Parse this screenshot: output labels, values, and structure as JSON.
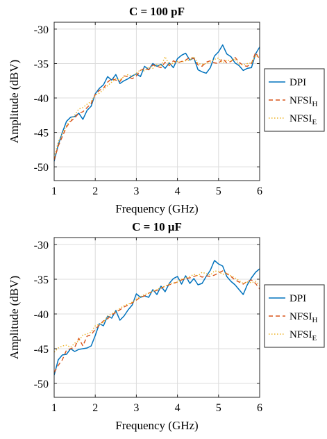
{
  "chart_data": [
    {
      "type": "line",
      "title": "C = 100 pF",
      "xlabel": "Frequency (GHz)",
      "ylabel": "Amplitude (dBV)",
      "xlim": [
        1,
        6
      ],
      "ylim": [
        -52,
        -29
      ],
      "xticks": [
        1,
        2,
        3,
        4,
        5,
        6
      ],
      "yticks": [
        -50,
        -45,
        -40,
        -35,
        -30
      ],
      "grid": true,
      "legend_position": "right",
      "series": [
        {
          "name": "DPI",
          "label_main": "DPI",
          "label_sub": "",
          "color": "#0072BD",
          "dash": "solid",
          "x": [
            1.0,
            1.1,
            1.2,
            1.3,
            1.4,
            1.5,
            1.6,
            1.7,
            1.8,
            1.9,
            2.0,
            2.1,
            2.2,
            2.3,
            2.4,
            2.5,
            2.6,
            2.7,
            2.8,
            2.9,
            3.0,
            3.1,
            3.2,
            3.3,
            3.4,
            3.5,
            3.6,
            3.7,
            3.8,
            3.9,
            4.0,
            4.1,
            4.2,
            4.3,
            4.4,
            4.5,
            4.6,
            4.7,
            4.8,
            4.9,
            5.0,
            5.1,
            5.2,
            5.3,
            5.4,
            5.5,
            5.6,
            5.7,
            5.8,
            5.9,
            6.0
          ],
          "y": [
            -49.2,
            -46.8,
            -45.0,
            -43.4,
            -42.8,
            -42.7,
            -42.2,
            -43.1,
            -41.8,
            -41.2,
            -39.4,
            -38.6,
            -38.1,
            -36.9,
            -37.4,
            -36.6,
            -37.9,
            -37.5,
            -37.2,
            -36.8,
            -36.5,
            -36.9,
            -35.4,
            -35.9,
            -35.0,
            -35.4,
            -35.1,
            -35.7,
            -34.9,
            -35.6,
            -34.3,
            -33.8,
            -33.5,
            -34.5,
            -34.2,
            -35.9,
            -36.2,
            -36.4,
            -35.6,
            -33.9,
            -33.3,
            -32.3,
            -33.6,
            -34.0,
            -34.9,
            -35.3,
            -36.0,
            -35.7,
            -35.6,
            -33.6,
            -32.6
          ]
        },
        {
          "name": "NFSI_H",
          "label_main": "NFSI",
          "label_sub": "H",
          "color": "#D95319",
          "dash": "6,4",
          "x": [
            1.0,
            1.1,
            1.2,
            1.3,
            1.4,
            1.5,
            1.6,
            1.7,
            1.8,
            1.9,
            2.0,
            2.1,
            2.2,
            2.3,
            2.4,
            2.5,
            2.6,
            2.7,
            2.8,
            2.9,
            3.0,
            3.1,
            3.2,
            3.3,
            3.4,
            3.5,
            3.6,
            3.7,
            3.8,
            3.9,
            4.0,
            4.1,
            4.2,
            4.3,
            4.4,
            4.5,
            4.6,
            4.7,
            4.8,
            4.9,
            5.0,
            5.1,
            5.2,
            5.3,
            5.4,
            5.5,
            5.6,
            5.7,
            5.8,
            5.9,
            6.0
          ],
          "y": [
            -49.0,
            -47.0,
            -45.6,
            -44.2,
            -43.4,
            -42.9,
            -42.2,
            -42.0,
            -41.4,
            -40.8,
            -39.5,
            -38.9,
            -38.6,
            -37.7,
            -37.2,
            -37.4,
            -37.6,
            -36.8,
            -36.9,
            -37.2,
            -36.8,
            -36.0,
            -35.7,
            -35.9,
            -35.2,
            -35.4,
            -35.6,
            -34.8,
            -35.3,
            -34.6,
            -34.9,
            -34.7,
            -34.5,
            -34.1,
            -34.3,
            -35.2,
            -35.4,
            -34.8,
            -34.6,
            -34.9,
            -35.0,
            -34.3,
            -34.9,
            -34.7,
            -34.1,
            -34.8,
            -35.3,
            -35.4,
            -35.0,
            -33.4,
            -34.4
          ]
        },
        {
          "name": "NFSI_E",
          "label_main": "NFSI",
          "label_sub": "E",
          "color": "#EDB120",
          "dash": "1.5,2.5",
          "x": [
            1.0,
            1.1,
            1.2,
            1.3,
            1.4,
            1.5,
            1.6,
            1.7,
            1.8,
            1.9,
            2.0,
            2.1,
            2.2,
            2.3,
            2.4,
            2.5,
            2.6,
            2.7,
            2.8,
            2.9,
            3.0,
            3.1,
            3.2,
            3.3,
            3.4,
            3.5,
            3.6,
            3.7,
            3.8,
            3.9,
            4.0,
            4.1,
            4.2,
            4.3,
            4.4,
            4.5,
            4.6,
            4.7,
            4.8,
            4.9,
            5.0,
            5.1,
            5.2,
            5.3,
            5.4,
            5.5,
            5.6,
            5.7,
            5.8,
            5.9,
            6.0
          ],
          "y": [
            -48.6,
            -46.4,
            -45.1,
            -44.0,
            -43.2,
            -42.5,
            -41.6,
            -41.4,
            -40.9,
            -40.5,
            -39.6,
            -39.3,
            -38.8,
            -38.2,
            -37.7,
            -37.2,
            -37.4,
            -36.9,
            -36.6,
            -36.9,
            -36.4,
            -35.9,
            -36.1,
            -35.5,
            -35.7,
            -35.1,
            -35.4,
            -34.0,
            -35.2,
            -34.9,
            -34.7,
            -34.8,
            -34.6,
            -34.5,
            -34.0,
            -35.0,
            -35.1,
            -35.0,
            -34.8,
            -34.4,
            -34.2,
            -34.9,
            -34.5,
            -34.6,
            -34.3,
            -35.1,
            -35.2,
            -35.0,
            -34.9,
            -33.9,
            -34.0
          ]
        }
      ]
    },
    {
      "type": "line",
      "title": "C = 10 μF",
      "xlabel": "Frequency (GHz)",
      "ylabel": "Amplitude (dBV)",
      "xlim": [
        1,
        6
      ],
      "ylim": [
        -52,
        -29
      ],
      "xticks": [
        1,
        2,
        3,
        4,
        5,
        6
      ],
      "yticks": [
        -50,
        -45,
        -40,
        -35,
        -30
      ],
      "grid": true,
      "legend_position": "right",
      "series": [
        {
          "name": "DPI",
          "label_main": "DPI",
          "label_sub": "",
          "color": "#0072BD",
          "dash": "solid",
          "x": [
            1.0,
            1.1,
            1.2,
            1.3,
            1.4,
            1.5,
            1.6,
            1.7,
            1.8,
            1.9,
            2.0,
            2.1,
            2.2,
            2.3,
            2.4,
            2.5,
            2.6,
            2.7,
            2.8,
            2.9,
            3.0,
            3.1,
            3.2,
            3.3,
            3.4,
            3.5,
            3.6,
            3.7,
            3.8,
            3.9,
            4.0,
            4.1,
            4.2,
            4.3,
            4.4,
            4.5,
            4.6,
            4.7,
            4.8,
            4.9,
            5.0,
            5.1,
            5.2,
            5.3,
            5.4,
            5.5,
            5.6,
            5.7,
            5.8,
            5.9,
            6.0
          ],
          "y": [
            -48.8,
            -46.6,
            -45.9,
            -45.8,
            -45.0,
            -45.4,
            -45.1,
            -45.0,
            -44.9,
            -44.6,
            -43.1,
            -41.4,
            -41.7,
            -40.3,
            -40.6,
            -39.5,
            -40.9,
            -40.3,
            -39.4,
            -38.7,
            -37.1,
            -37.6,
            -37.4,
            -37.6,
            -36.5,
            -37.2,
            -36.0,
            -36.8,
            -35.6,
            -34.9,
            -34.6,
            -35.7,
            -34.5,
            -35.6,
            -34.9,
            -35.8,
            -35.6,
            -34.6,
            -33.7,
            -32.3,
            -32.8,
            -33.1,
            -34.6,
            -35.3,
            -35.8,
            -36.5,
            -37.2,
            -35.8,
            -34.8,
            -34.0,
            -33.5
          ]
        },
        {
          "name": "NFSI_H",
          "label_main": "NFSI",
          "label_sub": "H",
          "color": "#D95319",
          "dash": "6,4",
          "x": [
            1.0,
            1.1,
            1.2,
            1.3,
            1.4,
            1.5,
            1.6,
            1.7,
            1.8,
            1.9,
            2.0,
            2.1,
            2.2,
            2.3,
            2.4,
            2.5,
            2.6,
            2.7,
            2.8,
            2.9,
            3.0,
            3.1,
            3.2,
            3.3,
            3.4,
            3.5,
            3.6,
            3.7,
            3.8,
            3.9,
            4.0,
            4.1,
            4.2,
            4.3,
            4.4,
            4.5,
            4.6,
            4.7,
            4.8,
            4.9,
            5.0,
            5.1,
            5.2,
            5.3,
            5.4,
            5.5,
            5.6,
            5.7,
            5.8,
            5.9,
            6.0
          ],
          "y": [
            -48.4,
            -47.4,
            -46.6,
            -45.2,
            -45.0,
            -44.8,
            -43.5,
            -44.6,
            -43.2,
            -43.0,
            -42.2,
            -41.6,
            -41.0,
            -40.7,
            -40.1,
            -39.8,
            -39.4,
            -39.0,
            -38.7,
            -38.4,
            -38.0,
            -37.6,
            -37.4,
            -37.0,
            -36.8,
            -36.6,
            -36.3,
            -36.0,
            -35.8,
            -35.6,
            -35.4,
            -35.1,
            -34.9,
            -34.8,
            -34.6,
            -34.4,
            -34.7,
            -34.5,
            -34.6,
            -34.4,
            -34.1,
            -33.8,
            -34.2,
            -34.6,
            -35.1,
            -35.4,
            -35.7,
            -35.3,
            -35.1,
            -35.6,
            -36.4
          ]
        },
        {
          "name": "NFSI_E",
          "label_main": "NFSI",
          "label_sub": "E",
          "color": "#EDB120",
          "dash": "1.5,2.5",
          "x": [
            1.0,
            1.1,
            1.2,
            1.3,
            1.4,
            1.5,
            1.6,
            1.7,
            1.8,
            1.9,
            2.0,
            2.1,
            2.2,
            2.3,
            2.4,
            2.5,
            2.6,
            2.7,
            2.8,
            2.9,
            3.0,
            3.1,
            3.2,
            3.3,
            3.4,
            3.5,
            3.6,
            3.7,
            3.8,
            3.9,
            4.0,
            4.1,
            4.2,
            4.3,
            4.4,
            4.5,
            4.6,
            4.7,
            4.8,
            4.9,
            5.0,
            5.1,
            5.2,
            5.3,
            5.4,
            5.5,
            5.6,
            5.7,
            5.8,
            5.9,
            6.0
          ],
          "y": [
            -45.5,
            -44.9,
            -44.6,
            -44.5,
            -44.8,
            -44.2,
            -43.9,
            -43.0,
            -42.9,
            -42.6,
            -41.7,
            -41.5,
            -41.2,
            -40.3,
            -40.0,
            -39.6,
            -39.2,
            -38.8,
            -38.6,
            -38.3,
            -37.9,
            -37.5,
            -37.2,
            -37.0,
            -36.7,
            -36.5,
            -36.2,
            -36.0,
            -35.7,
            -35.5,
            -35.4,
            -35.0,
            -34.8,
            -34.6,
            -34.3,
            -34.5,
            -34.0,
            -34.2,
            -34.4,
            -33.8,
            -33.9,
            -34.3,
            -34.1,
            -34.5,
            -34.8,
            -35.2,
            -35.6,
            -35.4,
            -35.5,
            -35.3,
            -35.9
          ]
        }
      ]
    }
  ]
}
